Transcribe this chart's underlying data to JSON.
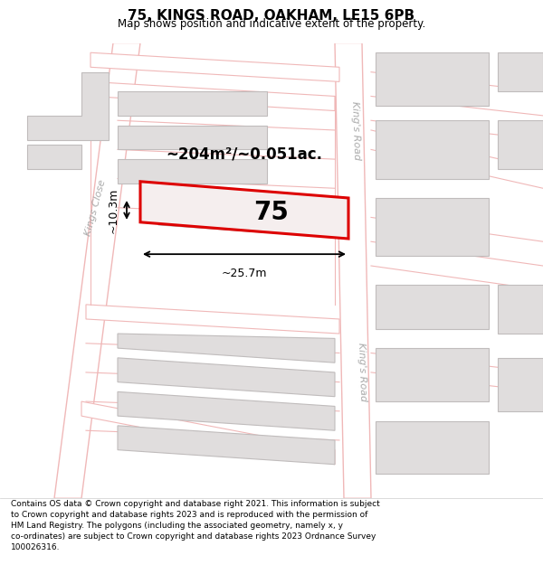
{
  "title": "75, KINGS ROAD, OAKHAM, LE15 6PB",
  "subtitle": "Map shows position and indicative extent of the property.",
  "footer_text": "Contains OS data © Crown copyright and database right 2021. This information is subject\nto Crown copyright and database rights 2023 and is reproduced with the permission of\nHM Land Registry. The polygons (including the associated geometry, namely x, y\nco-ordinates) are subject to Crown copyright and database rights 2023 Ordnance Survey\n100026316.",
  "map_bg": "#f5f4f4",
  "road_stroke": "#f0b8b8",
  "road_fill": "#ffffff",
  "plot_line_color": "#f0b8b8",
  "property_color": "#dd0000",
  "property_fill": "#f5eeee",
  "building_fill": "#e0dddd",
  "building_edge": "#c0bcbc",
  "area_text": "~204m²/~0.051ac.",
  "property_label": "75",
  "dim_width": "~25.7m",
  "dim_height": "~10.3m",
  "road_label_upper": "King's Road",
  "road_label_lower": "King's Road",
  "street_label": "Kings Close"
}
